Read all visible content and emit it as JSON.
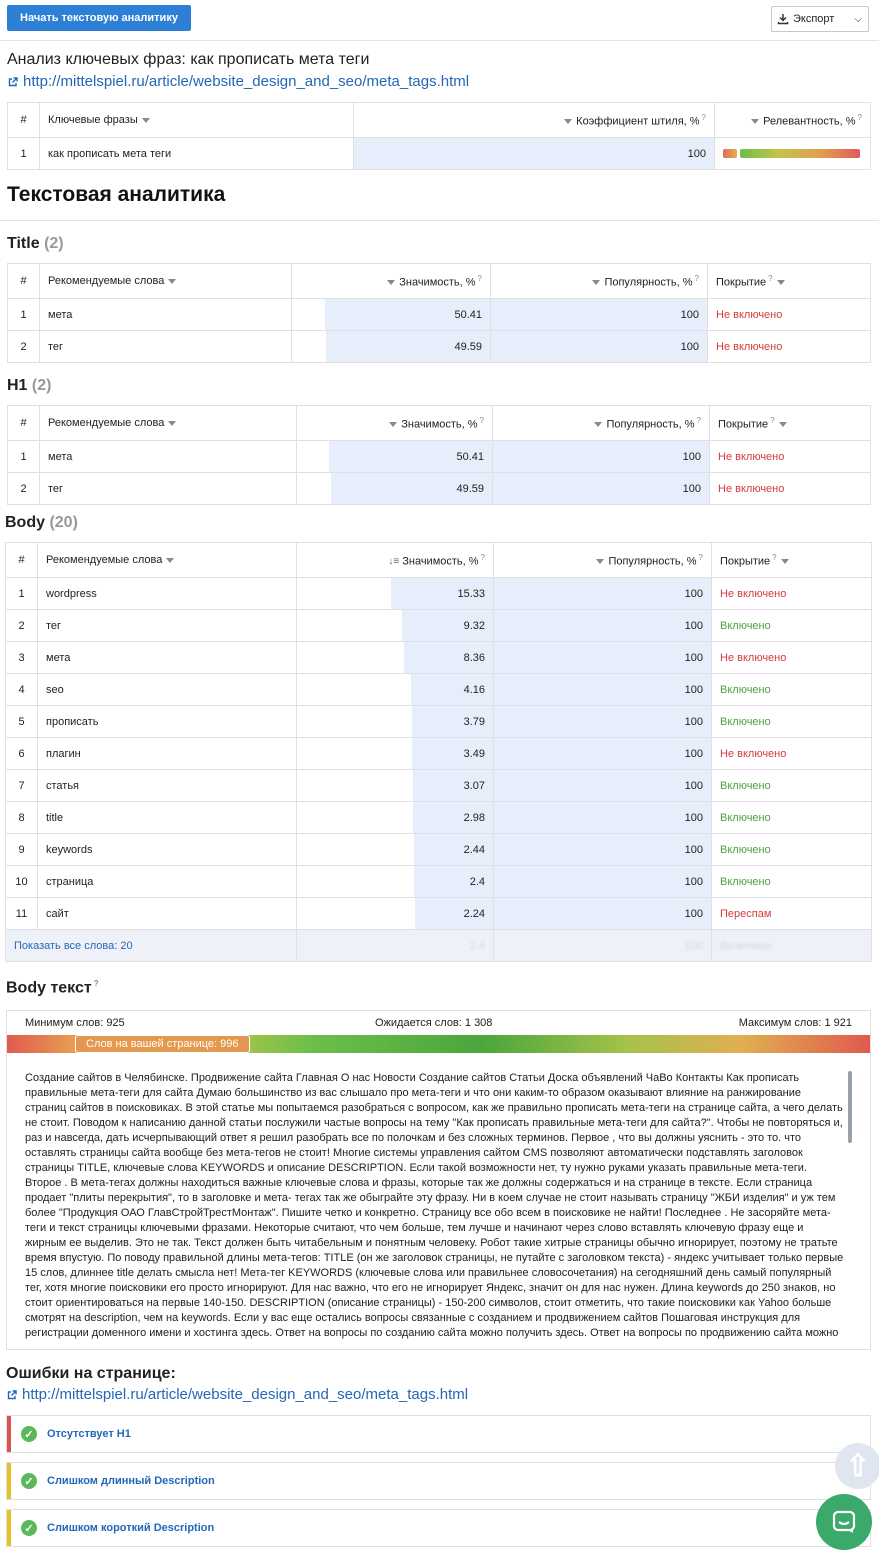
{
  "toolbar": {
    "start_label": "Начать текстовую аналитику",
    "export_label": "Экспорт"
  },
  "analysis": {
    "title": "Анализ ключевых фраз: как прописать мета теги",
    "url": "http://mittelspiel.ru/article/website_design_and_seo/meta_tags.html",
    "headers": {
      "num": "#",
      "phrase": "Ключевые фразы",
      "coef": "Коэффициент штиля, %",
      "rel": "Релевантность, %"
    },
    "rows": [
      {
        "num": "1",
        "phrase": "как прописать мета теги",
        "coef": "100"
      }
    ]
  },
  "text_analytics_title": "Текстовая аналитика",
  "title_section": {
    "name": "Title",
    "count": "(2)",
    "headers": {
      "num": "#",
      "word": "Рекомендуемые слова",
      "sig": "Значимость, %",
      "pop": "Популярность, %",
      "cov": "Покрытие"
    },
    "rows": [
      {
        "num": "1",
        "word": "мета",
        "sig": "50.41",
        "pop": "100",
        "cov": "Не включено",
        "sig_frac": 0.5041,
        "pop_frac": 1.0
      },
      {
        "num": "2",
        "word": "тег",
        "sig": "49.59",
        "pop": "100",
        "cov": "Не включено",
        "sig_frac": 0.4959,
        "pop_frac": 1.0
      }
    ]
  },
  "h1_section": {
    "name": "H1",
    "count": "(2)",
    "headers": {
      "num": "#",
      "word": "Рекомендуемые слова",
      "sig": "Значимость, %",
      "pop": "Популярность, %",
      "cov": "Покрытие"
    },
    "rows": [
      {
        "num": "1",
        "word": "мета",
        "sig": "50.41",
        "pop": "100",
        "cov": "Не включено",
        "sig_frac": 0.5041,
        "pop_frac": 1.0
      },
      {
        "num": "2",
        "word": "тег",
        "sig": "49.59",
        "pop": "100",
        "cov": "Не включено",
        "sig_frac": 0.4959,
        "pop_frac": 1.0
      }
    ]
  },
  "body_section": {
    "name": "Body",
    "count": "(20)",
    "headers": {
      "num": "#",
      "word": "Рекомендуемые слова",
      "sig": "Значимость, %",
      "pop": "Популярность, %",
      "cov": "Покрытие"
    },
    "rows": [
      {
        "num": "1",
        "word": "wordpress",
        "sig": "15.33",
        "pop": "100",
        "cov": "Не включено",
        "sig_frac": 0.1533,
        "pop_frac": 1.0
      },
      {
        "num": "2",
        "word": "тег",
        "sig": "9.32",
        "pop": "100",
        "cov": "Включено",
        "sig_frac": 0.0932,
        "pop_frac": 1.0
      },
      {
        "num": "3",
        "word": "мета",
        "sig": "8.36",
        "pop": "100",
        "cov": "Не включено",
        "sig_frac": 0.0836,
        "pop_frac": 1.0
      },
      {
        "num": "4",
        "word": "seo",
        "sig": "4.16",
        "pop": "100",
        "cov": "Включено",
        "sig_frac": 0.0416,
        "pop_frac": 1.0
      },
      {
        "num": "5",
        "word": "прописать",
        "sig": "3.79",
        "pop": "100",
        "cov": "Включено",
        "sig_frac": 0.0379,
        "pop_frac": 1.0
      },
      {
        "num": "6",
        "word": "плагин",
        "sig": "3.49",
        "pop": "100",
        "cov": "Не включено",
        "sig_frac": 0.0349,
        "pop_frac": 1.0
      },
      {
        "num": "7",
        "word": "статья",
        "sig": "3.07",
        "pop": "100",
        "cov": "Включено",
        "sig_frac": 0.0307,
        "pop_frac": 1.0
      },
      {
        "num": "8",
        "word": "title",
        "sig": "2.98",
        "pop": "100",
        "cov": "Включено",
        "sig_frac": 0.0298,
        "pop_frac": 1.0
      },
      {
        "num": "9",
        "word": "keywords",
        "sig": "2.44",
        "pop": "100",
        "cov": "Включено",
        "sig_frac": 0.0244,
        "pop_frac": 1.0
      },
      {
        "num": "10",
        "word": "страница",
        "sig": "2.4",
        "pop": "100",
        "cov": "Включено",
        "sig_frac": 0.024,
        "pop_frac": 1.0
      },
      {
        "num": "11",
        "word": "сайт",
        "sig": "2.24",
        "pop": "100",
        "cov": "Переспам",
        "sig_frac": 0.0224,
        "pop_frac": 1.0
      }
    ],
    "show_all": "Показать все слова: 20",
    "faded_row": {
      "sig": "2.4",
      "pop": "100",
      "cov": "Включено"
    }
  },
  "body_text": {
    "title": "Body текст",
    "min_label": "Минимум слов: 925",
    "expected_label": "Ожидается слов: 1 308",
    "max_label": "Максимум слов: 1 921",
    "page_words_label": "Слов на вашей странице: 996",
    "content": "Создание сайтов в Челябинске. Продвижение сайта Главная О нас Новости Создание сайтов Статьи Доска объявлений ЧаВо Контакты Как прописать правильные мета-теги для сайта Думаю большинство из вас слышало про мета-теги и что они каким-то образом оказывают влияние на ранжирование страниц сайтов в поисковиках. В этой статье мы попытаемся разобраться с вопросом, как же правильно прописать мета-теги на странице сайта, а чего делать не стоит. Поводом к написанию данной статьи послужили частые вопросы на тему \"Как прописать правильные мета-теги для сайта?\". Чтобы не повторяться и, раз и навсегда, дать исчерпывающий ответ я решил разобрать все по полочкам и без сложных терминов. Первое , что вы должны уяснить - это то. что оставлять страницы сайта вообще без мета-тегов не стоит! Многие системы управления сайтом CMS позволяют автоматически подставлять заголовок страницы TITLE, ключевые слова KEYWORDS и описание DESCRIPTION. Если такой возможности нет, ту нужно руками указать правильные мета-теги. Второе . В мета-тегах должны находиться важные ключевые слова и фразы, которые так же должны содержаться и на странице в тексте. Если страница продает \"плиты перекрытия\", то в заголовке и мета- тегах так же обыграйте эту фразу. Ни в коем случае не стоит называть страницу \"ЖБИ изделия\" и уж тем более \"Продукция ОАО ГлавСтройТрестМонтаж\". Пишите четко и конкретно. Страницу все обо всем в поисковике не найти! Последнее . Не засоряйте мета-теги и текст страницы ключевыми фразами. Некоторые считают, что чем больше, тем лучше и начинают через слово вставлять ключевую фразу еще и жирным ее выделив. Это не так. Текст должен быть читабельным и понятным человеку. Робот такие хитрые страницы обычно игнорирует, поэтому не тратьте время впустую. По поводу правильной длины мета-тегов: TITLE (он же заголовок страницы, не путайте с заголовком текста) - яндекс учитывает только первые 15 слов, длиннее title делать смысла нет! Мета-тег KEYWORDS (ключевые слова или правильнее словосочетания) на сегодняшний день самый популярный тег, хотя многие поисковики его просто игнорируют. Для нас важно, что его не игнорирует Яндекс, значит он для нас нужен. Длина keywords до 250 знаков, но стоит ориентироваться на первые 140-150. DESCRIPTION (описание страницы) - 150-200 символов, стоит отметить, что такие поисковики как Yahoo больше смотрят на description, чем на keywords. Если у вас еще остались вопросы связанные с созданием и продвижением сайтов Пошаговая инструкция для регистрации доменного имени и хостинга здесь. Ответ на вопросы по созданию сайта можно получить здесь. Ответ на вопросы по продвижению сайта можно получить"
  },
  "errors": {
    "title": "Ошибки на странице:",
    "url": "http://mittelspiel.ru/article/website_design_and_seo/meta_tags.html",
    "items": [
      {
        "label": "Отсутствует H1",
        "color": "#d9534f"
      },
      {
        "label": "Слишком длинный Description",
        "color": "#e6c229"
      },
      {
        "label": "Слишком короткий Description",
        "color": "#e6c229"
      }
    ]
  },
  "colors": {
    "primary": "#2e7fd6",
    "link": "#2467b8",
    "not_included": "#d63b3b",
    "included": "#4aa63c",
    "bar_fill": "#e6eefc"
  }
}
